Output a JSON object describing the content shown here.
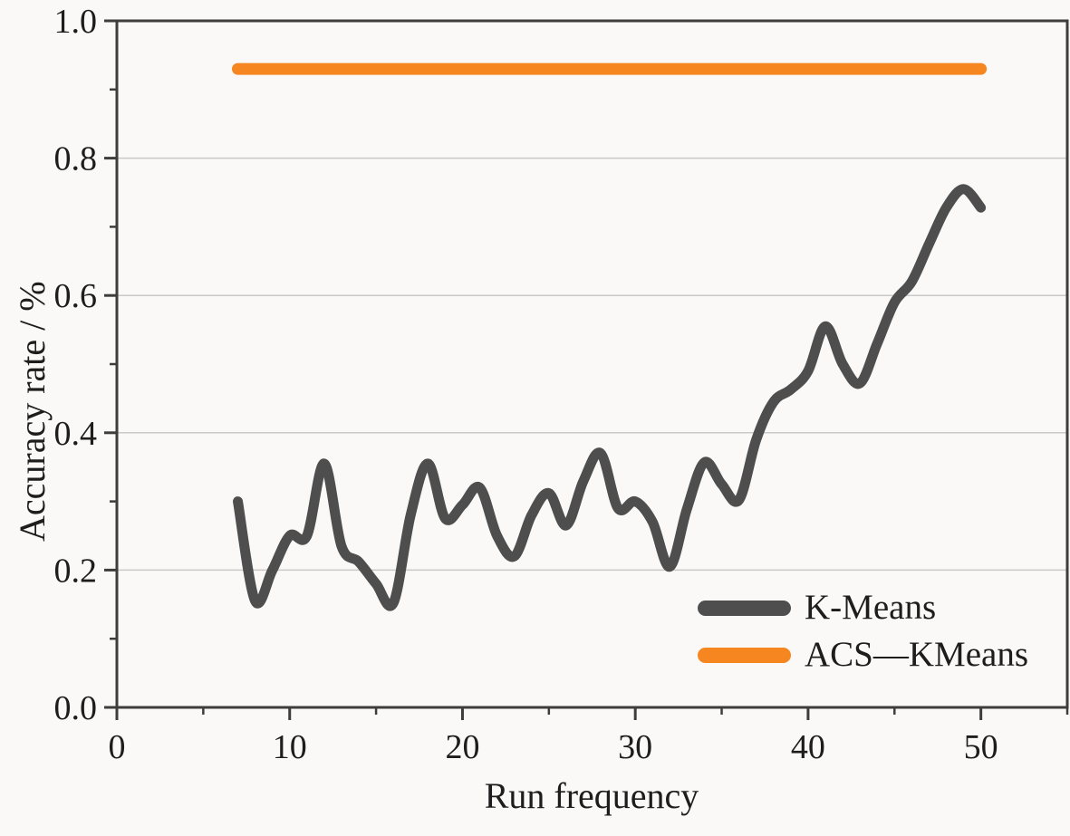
{
  "chart_data": {
    "type": "line",
    "xlabel": "Run frequency",
    "ylabel": "Accuracy rate / %",
    "xlim": [
      0,
      55
    ],
    "ylim": [
      0.0,
      1.0
    ],
    "x_tick_values": [
      0,
      10,
      20,
      30,
      40,
      50
    ],
    "x_tick_labels": [
      "0",
      "10",
      "20",
      "30",
      "40",
      "50"
    ],
    "x_minor_ticks": [
      5,
      15,
      25,
      35,
      45,
      55
    ],
    "y_tick_values": [
      0.0,
      0.2,
      0.4,
      0.6,
      0.8,
      1.0
    ],
    "y_tick_labels": [
      "0.0",
      "0.2",
      "0.4",
      "0.6",
      "0.8",
      "1.0"
    ],
    "y_minor_ticks": [
      0.1,
      0.3,
      0.5,
      0.7,
      0.9
    ],
    "grid": "horizontal-major-only",
    "legend_position": "lower-right",
    "series": [
      {
        "name": "K-Means",
        "color": "#4e4e4e",
        "smooth": true,
        "line_width": 11,
        "x": [
          7,
          8,
          9,
          10,
          11,
          12,
          13,
          14,
          15,
          16,
          17,
          18,
          19,
          20,
          21,
          22,
          23,
          24,
          25,
          26,
          27,
          28,
          29,
          30,
          31,
          32,
          33,
          34,
          35,
          36,
          37,
          38,
          39,
          40,
          41,
          42,
          43,
          44,
          45,
          46,
          47,
          48,
          49,
          50
        ],
        "values": [
          0.3,
          0.155,
          0.2,
          0.25,
          0.25,
          0.355,
          0.235,
          0.212,
          0.18,
          0.152,
          0.28,
          0.355,
          0.275,
          0.295,
          0.32,
          0.25,
          0.22,
          0.28,
          0.312,
          0.265,
          0.33,
          0.37,
          0.29,
          0.3,
          0.27,
          0.205,
          0.29,
          0.357,
          0.325,
          0.302,
          0.39,
          0.445,
          0.463,
          0.49,
          0.555,
          0.5,
          0.472,
          0.53,
          0.59,
          0.62,
          0.675,
          0.728,
          0.755,
          0.728
        ]
      },
      {
        "name": "ACS—KMeans",
        "color": "#f6861f",
        "smooth": false,
        "line_width": 13,
        "x": [
          7,
          50
        ],
        "values": [
          0.93,
          0.93
        ]
      }
    ]
  },
  "legend": {
    "items": [
      {
        "label": "K-Means",
        "color": "#4e4e4e"
      },
      {
        "label": "ACS—KMeans",
        "color": "#f6861f"
      }
    ]
  },
  "style": {
    "frame_color": "#3d3d3d",
    "grid_color": "#c9c9c9",
    "text_color": "#1d1d1d",
    "background": "#faf9f7"
  }
}
